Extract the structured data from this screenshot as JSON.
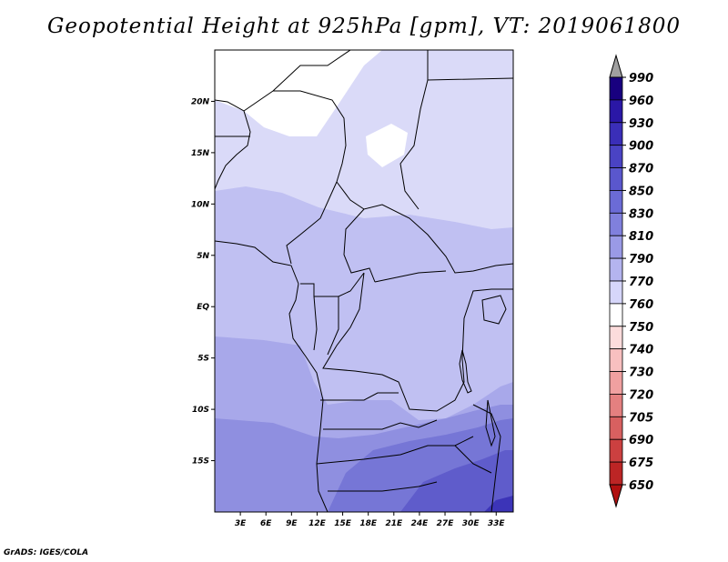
{
  "title": "Geopotential Height at 925hPa [gpm], VT: 2019061800",
  "credit": "GrADS: IGES/COLA",
  "map": {
    "lat_ticks": [
      "20N",
      "15N",
      "10N",
      "5N",
      "EQ",
      "5S",
      "10S",
      "15S"
    ],
    "lon_ticks": [
      "3E",
      "6E",
      "9E",
      "12E",
      "15E",
      "18E",
      "21E",
      "24E",
      "27E",
      "30E",
      "33E"
    ],
    "lon_range": [
      0,
      35
    ],
    "lat_range": [
      -20,
      25
    ]
  },
  "colorbar": {
    "labels": [
      "990",
      "960",
      "930",
      "900",
      "870",
      "850",
      "830",
      "810",
      "790",
      "770",
      "760",
      "750",
      "740",
      "730",
      "720",
      "705",
      "690",
      "675",
      "650"
    ],
    "colors": [
      "#18007f",
      "#2a17a6",
      "#3a2eb8",
      "#4a43c4",
      "#5a57cd",
      "#6b6bd6",
      "#8080dd",
      "#9a9ae6",
      "#b4b4ef",
      "#d6d6fa",
      "#ffffff",
      "#fcdcdc",
      "#f8c0c0",
      "#f0a0a0",
      "#e48080",
      "#d86060",
      "#cc4040",
      "#bc2525",
      "#a81010"
    ],
    "top_arrow_color": "#a0a0a0",
    "bottom_arrow_color": "#b01010"
  },
  "field_colors": {
    "c770": "#ffffff",
    "c790": "#dadaf8",
    "c810": "#c0c0f2",
    "c830": "#a8a8ea",
    "c850": "#8f8fe0",
    "c870": "#7676d6",
    "c900": "#5f5ccb",
    "c930": "#3c34b8"
  }
}
